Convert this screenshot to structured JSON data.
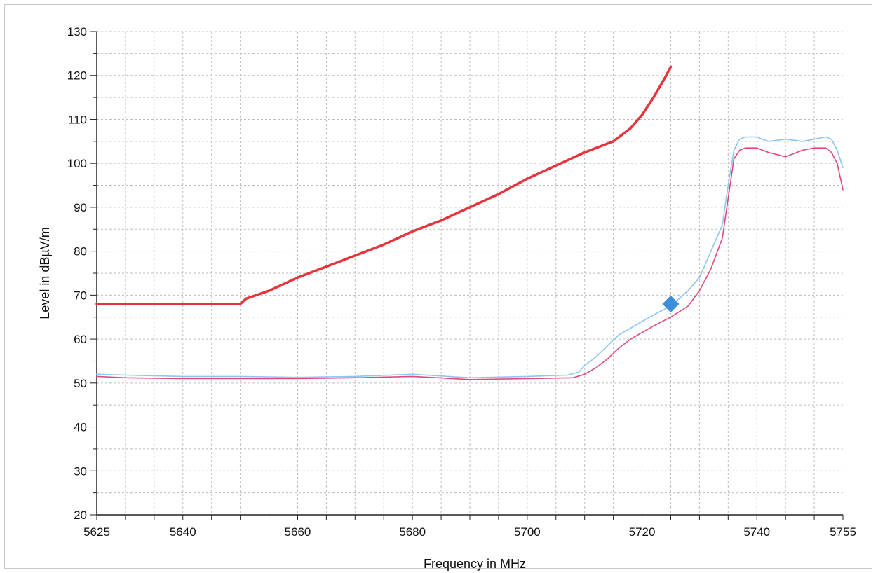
{
  "chart_data": {
    "type": "line",
    "title": "",
    "xlabel": "Frequency in MHz",
    "ylabel": "Level in dBµV/m",
    "xlim": [
      5625,
      5755
    ],
    "ylim": [
      20,
      130
    ],
    "x_ticks": [
      5625,
      5640,
      5660,
      5680,
      5700,
      5720,
      5740,
      5755
    ],
    "x_tick_labels": [
      "5625",
      "5640",
      "5660",
      "5680",
      "5700",
      "5720",
      "5740",
      "5755"
    ],
    "y_ticks": [
      20,
      30,
      40,
      50,
      60,
      70,
      80,
      90,
      100,
      110,
      120,
      130
    ],
    "y_tick_labels": [
      "20",
      "30",
      "40",
      "50",
      "60",
      "70",
      "80",
      "90",
      "100",
      "110",
      "120",
      "130"
    ],
    "grid": true,
    "legend": "none",
    "series": [
      {
        "color": "#e8333a",
        "x": [
          5625,
          5650,
          5651,
          5655,
          5660,
          5665,
          5670,
          5675,
          5680,
          5685,
          5690,
          5695,
          5700,
          5705,
          5710,
          5715,
          5718,
          5720,
          5722,
          5724,
          5725
        ],
        "y": [
          68,
          68,
          69.2,
          71,
          74,
          76.5,
          79,
          81.5,
          84.5,
          87,
          90,
          93,
          96.5,
          99.5,
          102.5,
          105,
          108,
          111,
          115,
          119.5,
          122
        ]
      },
      {
        "color": "#8ec5f0",
        "x": [
          5625,
          5630,
          5640,
          5650,
          5660,
          5670,
          5680,
          5690,
          5700,
          5707,
          5709,
          5710,
          5712,
          5714,
          5716,
          5718,
          5720,
          5722,
          5725,
          5728,
          5730,
          5732,
          5734,
          5735,
          5736,
          5737,
          5738,
          5740,
          5742,
          5745,
          5748,
          5750,
          5752,
          5753,
          5754,
          5755
        ],
        "y": [
          52,
          51.8,
          51.5,
          51.5,
          51.3,
          51.5,
          52,
          51.2,
          51.5,
          51.8,
          52.5,
          54,
          56,
          58.5,
          61,
          62.5,
          64,
          65.5,
          67.5,
          71,
          74,
          80,
          86,
          95,
          103,
          105.5,
          106,
          106,
          105,
          105.5,
          105,
          105.5,
          106,
          105.5,
          103,
          99
        ]
      },
      {
        "color": "#e0487e",
        "x": [
          5625,
          5630,
          5640,
          5650,
          5660,
          5670,
          5680,
          5690,
          5700,
          5708,
          5710,
          5712,
          5714,
          5716,
          5718,
          5720,
          5722,
          5725,
          5728,
          5730,
          5732,
          5734,
          5735,
          5736,
          5737,
          5738,
          5740,
          5742,
          5745,
          5748,
          5750,
          5752,
          5753,
          5754,
          5755
        ],
        "y": [
          51.5,
          51.2,
          51,
          51,
          51,
          51.2,
          51.5,
          50.8,
          51,
          51.2,
          52,
          53.5,
          55.5,
          58,
          60,
          61.5,
          63,
          65,
          67.5,
          71,
          76,
          83,
          92,
          101,
          103,
          103.5,
          103.5,
          102.5,
          101.5,
          103,
          103.5,
          103.5,
          102.5,
          100,
          94
        ]
      }
    ],
    "marker": {
      "shape": "diamond",
      "color": "#3c8fd6",
      "x": 5725,
      "y": 68
    }
  }
}
